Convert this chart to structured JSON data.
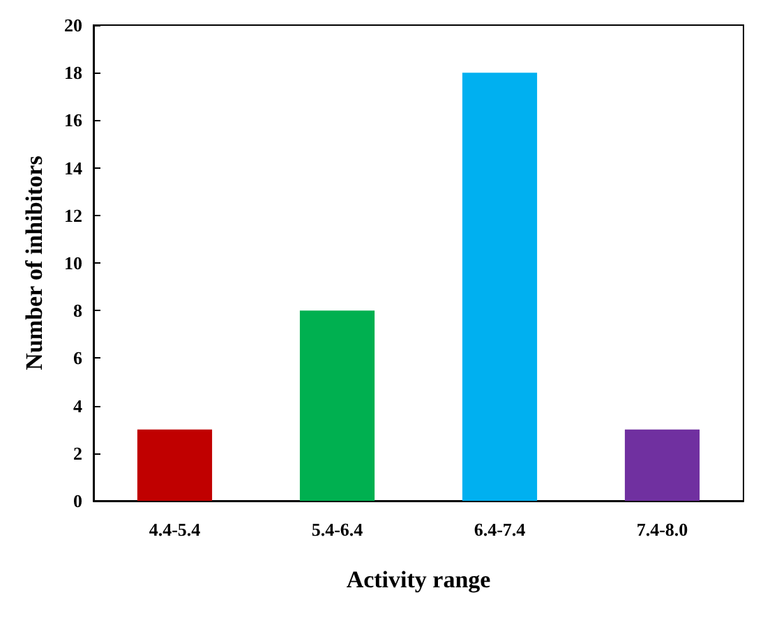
{
  "chart_data": {
    "type": "bar",
    "xlabel": "Activity range",
    "ylabel": "Number of inhibitors",
    "categories": [
      "4.4-5.4",
      "5.4-6.4",
      "6.4-7.4",
      "7.4-8.0"
    ],
    "values": [
      3,
      8,
      18,
      3
    ],
    "colors": [
      "#c00000",
      "#00b050",
      "#00b0f0",
      "#7030a0"
    ],
    "ylim": [
      0,
      20
    ],
    "yticks": [
      0,
      2,
      4,
      6,
      8,
      10,
      12,
      14,
      16,
      18,
      20
    ],
    "grid": false
  }
}
